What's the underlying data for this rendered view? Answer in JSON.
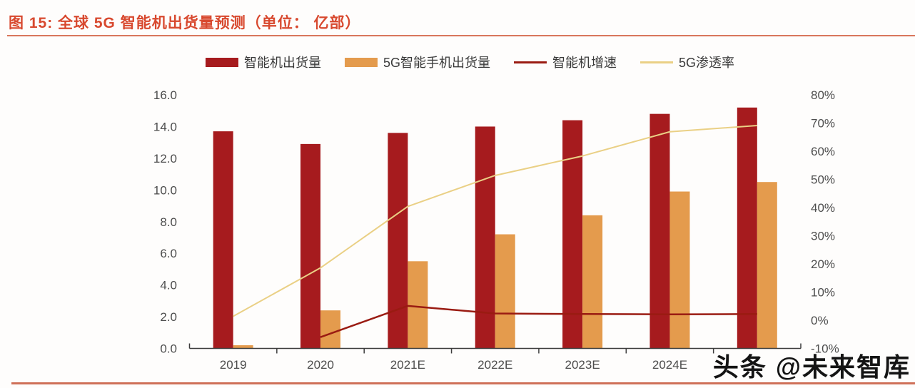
{
  "figure": {
    "title": "图 15: 全球 5G 智能机出货量预测（单位： 亿部）"
  },
  "watermark": "头条 @未来智库",
  "colors": {
    "title_red": "#d8492f",
    "underline": "#d9765c",
    "bar_smartphone": "#a61b1e",
    "bar_5g": "#e49b4d",
    "line_growth": "#9a1b12",
    "line_penetration": "#ead085",
    "axis_text": "#4d4d4d",
    "axis_line": "#3c3c3c",
    "watermark_text": "#141414",
    "bottom_rule": "#cf7058"
  },
  "chart_data": {
    "type": "bar",
    "title": "图 15: 全球 5G 智能机出货量预测（单位： 亿部）",
    "categories": [
      "2019",
      "2020",
      "2021E",
      "2022E",
      "2023E",
      "2024E",
      ""
    ],
    "series": [
      {
        "name": "智能机出货量",
        "type": "bar",
        "axis": "left",
        "color": "#a61b1e",
        "values": [
          13.7,
          12.9,
          13.6,
          14.0,
          14.4,
          14.8,
          15.2
        ]
      },
      {
        "name": "5G智能手机出货量",
        "type": "bar",
        "axis": "left",
        "color": "#e49b4d",
        "values": [
          0.2,
          2.4,
          5.5,
          7.2,
          8.4,
          9.9,
          10.5
        ]
      },
      {
        "name": "智能机增速",
        "type": "line",
        "axis": "right",
        "color": "#9a1b12",
        "values": [
          null,
          -6.0,
          5.1,
          2.4,
          2.2,
          2.1,
          2.2
        ]
      },
      {
        "name": "5G渗透率",
        "type": "line",
        "axis": "right",
        "color": "#ead085",
        "values": [
          1.4,
          18.6,
          40.4,
          51.4,
          58.3,
          66.9,
          69.1
        ]
      }
    ],
    "left_axis": {
      "min": 0,
      "max": 16,
      "tick_values": [
        0,
        2,
        4,
        6,
        8,
        10,
        12,
        14,
        16
      ],
      "tick_labels": [
        "0.0",
        "2.0",
        "4.0",
        "6.0",
        "8.0",
        "10.0",
        "12.0",
        "14.0",
        "16.0"
      ]
    },
    "right_axis": {
      "min": -10,
      "max": 80,
      "tick_values": [
        -10,
        0,
        10,
        20,
        30,
        40,
        50,
        60,
        70,
        80
      ],
      "tick_labels": [
        "-10%",
        "0%",
        "10%",
        "20%",
        "30%",
        "40%",
        "50%",
        "60%",
        "70%",
        "80%"
      ]
    },
    "grid": false,
    "legend_position": "top",
    "xlabel": "",
    "ylabel_left": "",
    "ylabel_right": ""
  }
}
